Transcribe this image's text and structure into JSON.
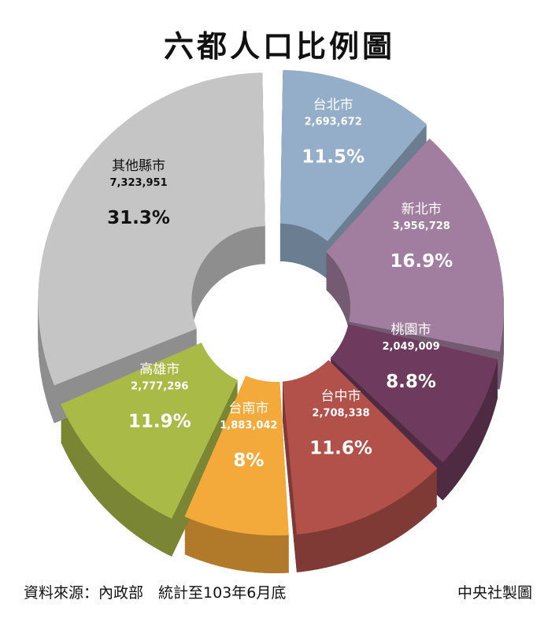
{
  "title": "六都人口比例圖",
  "footer": {
    "source": "資料來源：內政部　統計至103年6月底",
    "credit": "中央社製圖"
  },
  "chart_data": {
    "type": "pie",
    "variant": "donut",
    "title": "六都人口比例圖",
    "slices": [
      {
        "name": "台北市",
        "value": "2,693,672",
        "percent": "11.5%",
        "color": "#94AEC9"
      },
      {
        "name": "新北市",
        "value": "3,956,728",
        "percent": "16.9%",
        "color": "#A17E9F"
      },
      {
        "name": "桃園市",
        "value": "2,049,009",
        "percent": "8.8%",
        "color": "#6E3A5D"
      },
      {
        "name": "台中市",
        "value": "2,708,338",
        "percent": "11.6%",
        "color": "#B2504A"
      },
      {
        "name": "台南市",
        "value": "1,883,042",
        "percent": "8%",
        "color": "#F4AA3B"
      },
      {
        "name": "高雄市",
        "value": "2,777,296",
        "percent": "11.9%",
        "color": "#A9BA47"
      },
      {
        "name": "其他縣市",
        "value": "7,323,951",
        "percent": "31.3%",
        "color": "#C5C5C5"
      }
    ]
  }
}
